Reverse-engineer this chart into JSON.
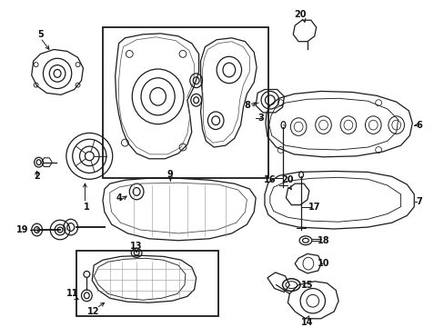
{
  "bg_color": "#ffffff",
  "line_color": "#1a1a1a",
  "label_color": "#111111",
  "fig_width": 4.89,
  "fig_height": 3.6,
  "dpi": 100,
  "lw": 0.9,
  "label_fs": 7.0
}
